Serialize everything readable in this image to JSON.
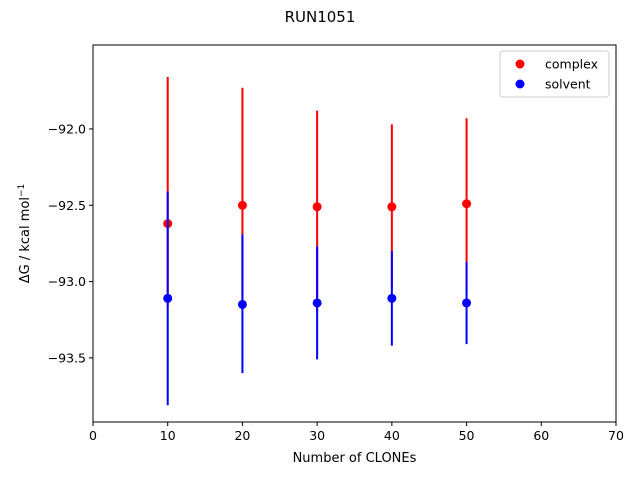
{
  "chart_data": {
    "type": "scatter",
    "title": "RUN1051",
    "xlabel": "Number of CLONEs",
    "ylabel_text": "ΔG / kcal mol",
    "ylabel_superscript": "−1",
    "xlim": [
      0,
      70
    ],
    "ylim": [
      -93.92,
      -91.45
    ],
    "x_ticks": [
      0,
      10,
      20,
      30,
      40,
      50,
      60,
      70
    ],
    "x_tick_labels": [
      "0",
      "10",
      "20",
      "30",
      "40",
      "50",
      "60",
      "70"
    ],
    "y_ticks": [
      -92.0,
      -92.5,
      -93.0,
      -93.5
    ],
    "y_tick_labels": [
      "−92.0",
      "−92.5",
      "−93.0",
      "−93.5"
    ],
    "grid": false,
    "legend_position": "top-right",
    "series": [
      {
        "name": "complex",
        "color": "#ff0000",
        "x": [
          10,
          20,
          30,
          40,
          50
        ],
        "y": [
          -92.62,
          -92.5,
          -92.51,
          -92.51,
          -92.49
        ],
        "err_low": [
          -93.16,
          -93.18,
          -93.2,
          -93.04,
          -93.07
        ],
        "err_high": [
          -91.66,
          -91.73,
          -91.88,
          -91.97,
          -91.93
        ]
      },
      {
        "name": "solvent",
        "color": "#0000ff",
        "x": [
          10,
          20,
          30,
          40,
          50
        ],
        "y": [
          -93.11,
          -93.15,
          -93.14,
          -93.11,
          -93.14
        ],
        "err_low": [
          -93.81,
          -93.6,
          -93.51,
          -93.42,
          -93.41
        ],
        "err_high": [
          -92.41,
          -92.69,
          -92.77,
          -92.8,
          -92.87
        ]
      }
    ]
  }
}
